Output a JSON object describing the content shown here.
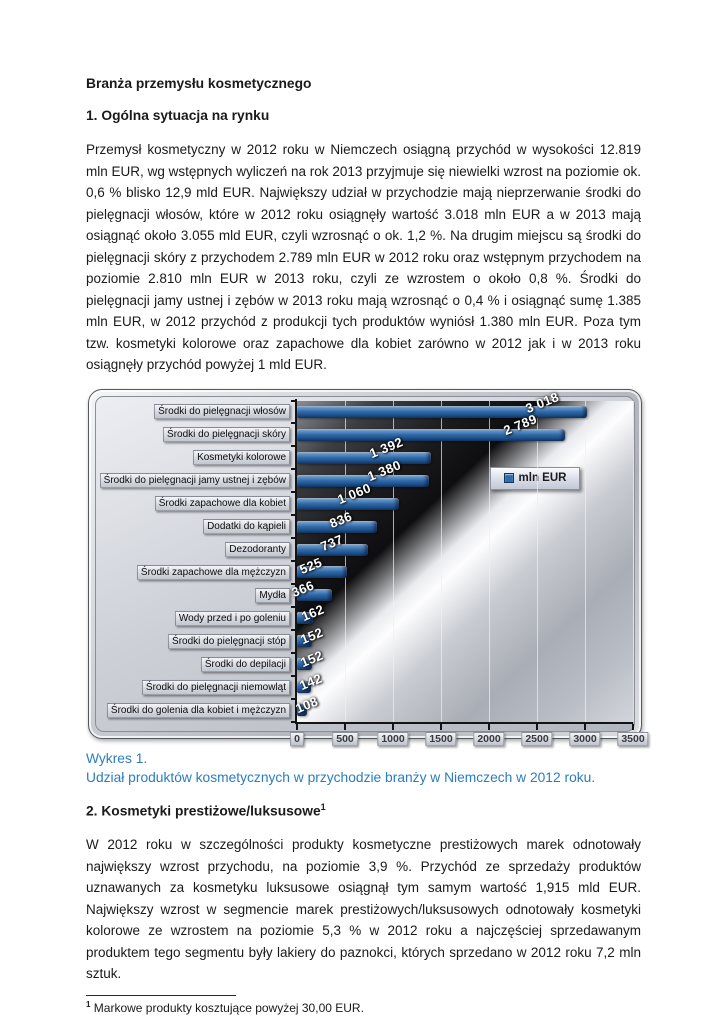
{
  "document": {
    "title": "Branża przemysłu kosmetycznego",
    "section1_heading": "1. Ogólna sytuacja na rynku",
    "paragraph1": "Przemysł kosmetyczny w 2012 roku w Niemczech osiągną przychód w wysokości 12.819 mln EUR, wg wstępnych wyliczeń na rok 2013 przyjmuje się niewielki wzrost na poziomie ok. 0,6 %  blisko 12,9 mld EUR. Największy udział w przychodzie mają nieprzerwanie środki do pielęgnacji włosów, które w 2012 roku osiągnęły wartość 3.018 mln EUR a w 2013 mają osiągnąć około 3.055 mld EUR, czyli wzrosnąć o ok. 1,2 %. Na drugim miejscu są środki do pielęgnacji skóry z przychodem 2.789 mln EUR w 2012 roku oraz wstępnym przychodem na poziomie 2.810 mln EUR w 2013 roku, czyli ze wzrostem o około 0,8 %. Środki do pielęgnacji jamy ustnej i zębów w 2013 roku mają wzrosnąć o 0,4 % i osiągnąć sumę 1.385 mln EUR, w 2012 przychód z produkcji tych produktów wyniósł 1.380 mln EUR. Poza tym tzw. kosmetyki kolorowe oraz zapachowe dla kobiet zarówno w 2012 jak i w 2013 roku osiągnęły przychód powyżej 1 mld EUR.",
    "caption_line1": "Wykres 1.",
    "caption_line2": "Udział produktów kosmetycznych w przychodzie branży w Niemczech w 2012 roku.",
    "caption_color": "#2b7cc0",
    "section2_heading": "2. Kosmetyki prestiżowe/luksusowe",
    "section2_footnote_ref": "1",
    "paragraph2": "W 2012 roku w szczególności produkty kosmetyczne prestiżowych marek odnotowały największy wzrost przychodu, na poziomie 3,9 %. Przychód ze sprzedaży produktów uznawanych za kosmetyku luksusowe osiągnął tym samym wartość 1,915 mld EUR. Największy wzrost w segmencie marek prestiżowych/luksusowych odnotowały kosmetyki kolorowe ze wzrostem na poziomie 5,3 % w 2012 roku a najczęściej sprzedawanym produktem tego segmentu były lakiery do paznokci, których sprzedano w 2012 roku 7,2 mln sztuk.",
    "footnote_ref": "1",
    "footnote_text": "Markowe produkty kosztujące powyżej 30,00 EUR."
  },
  "chart_data": {
    "type": "bar",
    "orientation": "horizontal",
    "title": "",
    "xlabel": "",
    "ylabel": "",
    "legend": "mln EUR",
    "legend_position": "middle-right",
    "grid": true,
    "xlim": [
      0,
      3500
    ],
    "x_ticks": [
      0,
      500,
      1000,
      1500,
      2000,
      2500,
      3000,
      3500
    ],
    "bar_color": "#2f6cab",
    "categories": [
      "Środki do pielęgnacji włosów",
      "Środki do pielęgnacji skóry",
      "Kosmetyki kolorowe",
      "Środki do pielęgnacji jamy ustnej i zębów",
      "Środki zapachowe dla kobiet",
      "Dodatki do kąpieli",
      "Dezodoranty",
      "Środki zapachowe dla mężczyzn",
      "Mydła",
      "Wody przed i po goleniu",
      "Środki do pielęgnacji stóp",
      "Środki do depilacji",
      "Środki do pielęgnacji niemowląt",
      "Środki do golenia dla kobiet i mężczyzn"
    ],
    "values": [
      3018,
      2789,
      1392,
      1380,
      1060,
      836,
      737,
      525,
      366,
      162,
      152,
      152,
      142,
      108
    ],
    "value_labels": [
      "3 018",
      "2 789",
      "1 392",
      "1 380",
      "1 060",
      "836",
      "737",
      "525",
      "366",
      "162",
      "152",
      "152",
      "142",
      "108"
    ]
  }
}
